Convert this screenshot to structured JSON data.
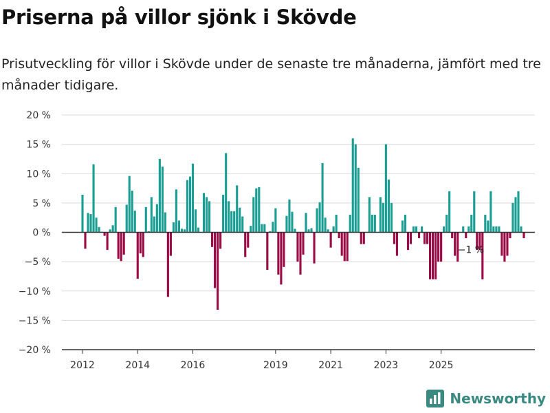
{
  "title": "Priserna på villor sjönk i Skövde",
  "subtitle": "Prisutveckling för villor i Skövde under de senaste tre månaderna, jämfört med tre månader tidigare.",
  "brand": {
    "name": "Newsworthy",
    "icon": "bar-chart-logo-icon",
    "color": "#3a8a82"
  },
  "chart_data": {
    "type": "bar",
    "title": "",
    "xlabel": "",
    "ylabel": "",
    "ylim": [
      -20,
      20
    ],
    "y_ticks": [
      "20 %",
      "15 %",
      "10 %",
      "5 %",
      "0 %",
      "−5 %",
      "−10 %",
      "−15 %",
      "−20 %"
    ],
    "y_tick_values": [
      20,
      15,
      10,
      5,
      0,
      -5,
      -10,
      -15,
      -20
    ],
    "x_ticks": [
      "2012",
      "2014",
      "2016",
      "2019",
      "2021",
      "2023",
      "2025"
    ],
    "x_tick_index": [
      0,
      20,
      40,
      70,
      90,
      110,
      130
    ],
    "grid": true,
    "colors": {
      "positive": "#1a9e94",
      "negative": "#9b0b45",
      "grid": "#d9d9d9",
      "axis": "#333333"
    },
    "annotation": {
      "text": "−1 %",
      "index": 135
    },
    "values": [
      6.4,
      -2.8,
      3.3,
      3.1,
      11.6,
      2.5,
      0.9,
      0.1,
      -0.6,
      -3.0,
      0.5,
      1.2,
      4.3,
      -4.5,
      -4.9,
      -3.8,
      4.7,
      9.6,
      7.1,
      3.7,
      -7.9,
      -3.6,
      -4.2,
      4.3,
      0.2,
      6.0,
      2.7,
      4.8,
      12.5,
      11.2,
      3.4,
      -11.0,
      -4.0,
      1.7,
      7.3,
      2.0,
      0.6,
      0.5,
      8.9,
      9.5,
      11.7,
      3.9,
      0.8,
      0,
      6.7,
      6.0,
      5.3,
      -2.5,
      -9.5,
      -13.2,
      -2.8,
      6.4,
      13.5,
      5.3,
      3.6,
      3.6,
      8.0,
      4.2,
      2.7,
      -4.2,
      -2.6,
      1.1,
      6.0,
      7.5,
      7.7,
      1.4,
      1.4,
      -6.4,
      0.2,
      1.8,
      4.1,
      -7.2,
      -8.9,
      -5.9,
      2.8,
      5.6,
      3.5,
      0.6,
      -5.0,
      -7.2,
      -3.8,
      3.3,
      0.5,
      0.7,
      -5.3,
      4.1,
      5.1,
      11.8,
      2.5,
      0.5,
      -2.6,
      1.0,
      3.0,
      -1.0,
      -4.0,
      -4.9,
      -4.9,
      3.0,
      16.0,
      15.0,
      11.0,
      -2.0,
      -2.0,
      0,
      6.0,
      3.0,
      3.0,
      0,
      6.0,
      5.0,
      15.0,
      9.0,
      5.0,
      -2.0,
      -4.0,
      0,
      2.0,
      3.0,
      -3.0,
      -2.0,
      1.0,
      1.0,
      -1.0,
      1.0,
      -2.0,
      -2.0,
      -8.0,
      -8.0,
      -8.0,
      -5.0,
      -5.0,
      1.0,
      3.0,
      7.0,
      -1.0,
      -4.0,
      -5.0,
      0,
      1.0,
      -1.0,
      1.0,
      3.0,
      7.0,
      -3.0,
      -3.0,
      -8.0,
      3.0,
      2.0,
      7.0,
      1.0,
      1.0,
      1.0,
      -4.0,
      -5.0,
      -4.0,
      -1.0,
      5.0,
      6.0,
      7.0,
      1.0,
      -1.0
    ]
  }
}
